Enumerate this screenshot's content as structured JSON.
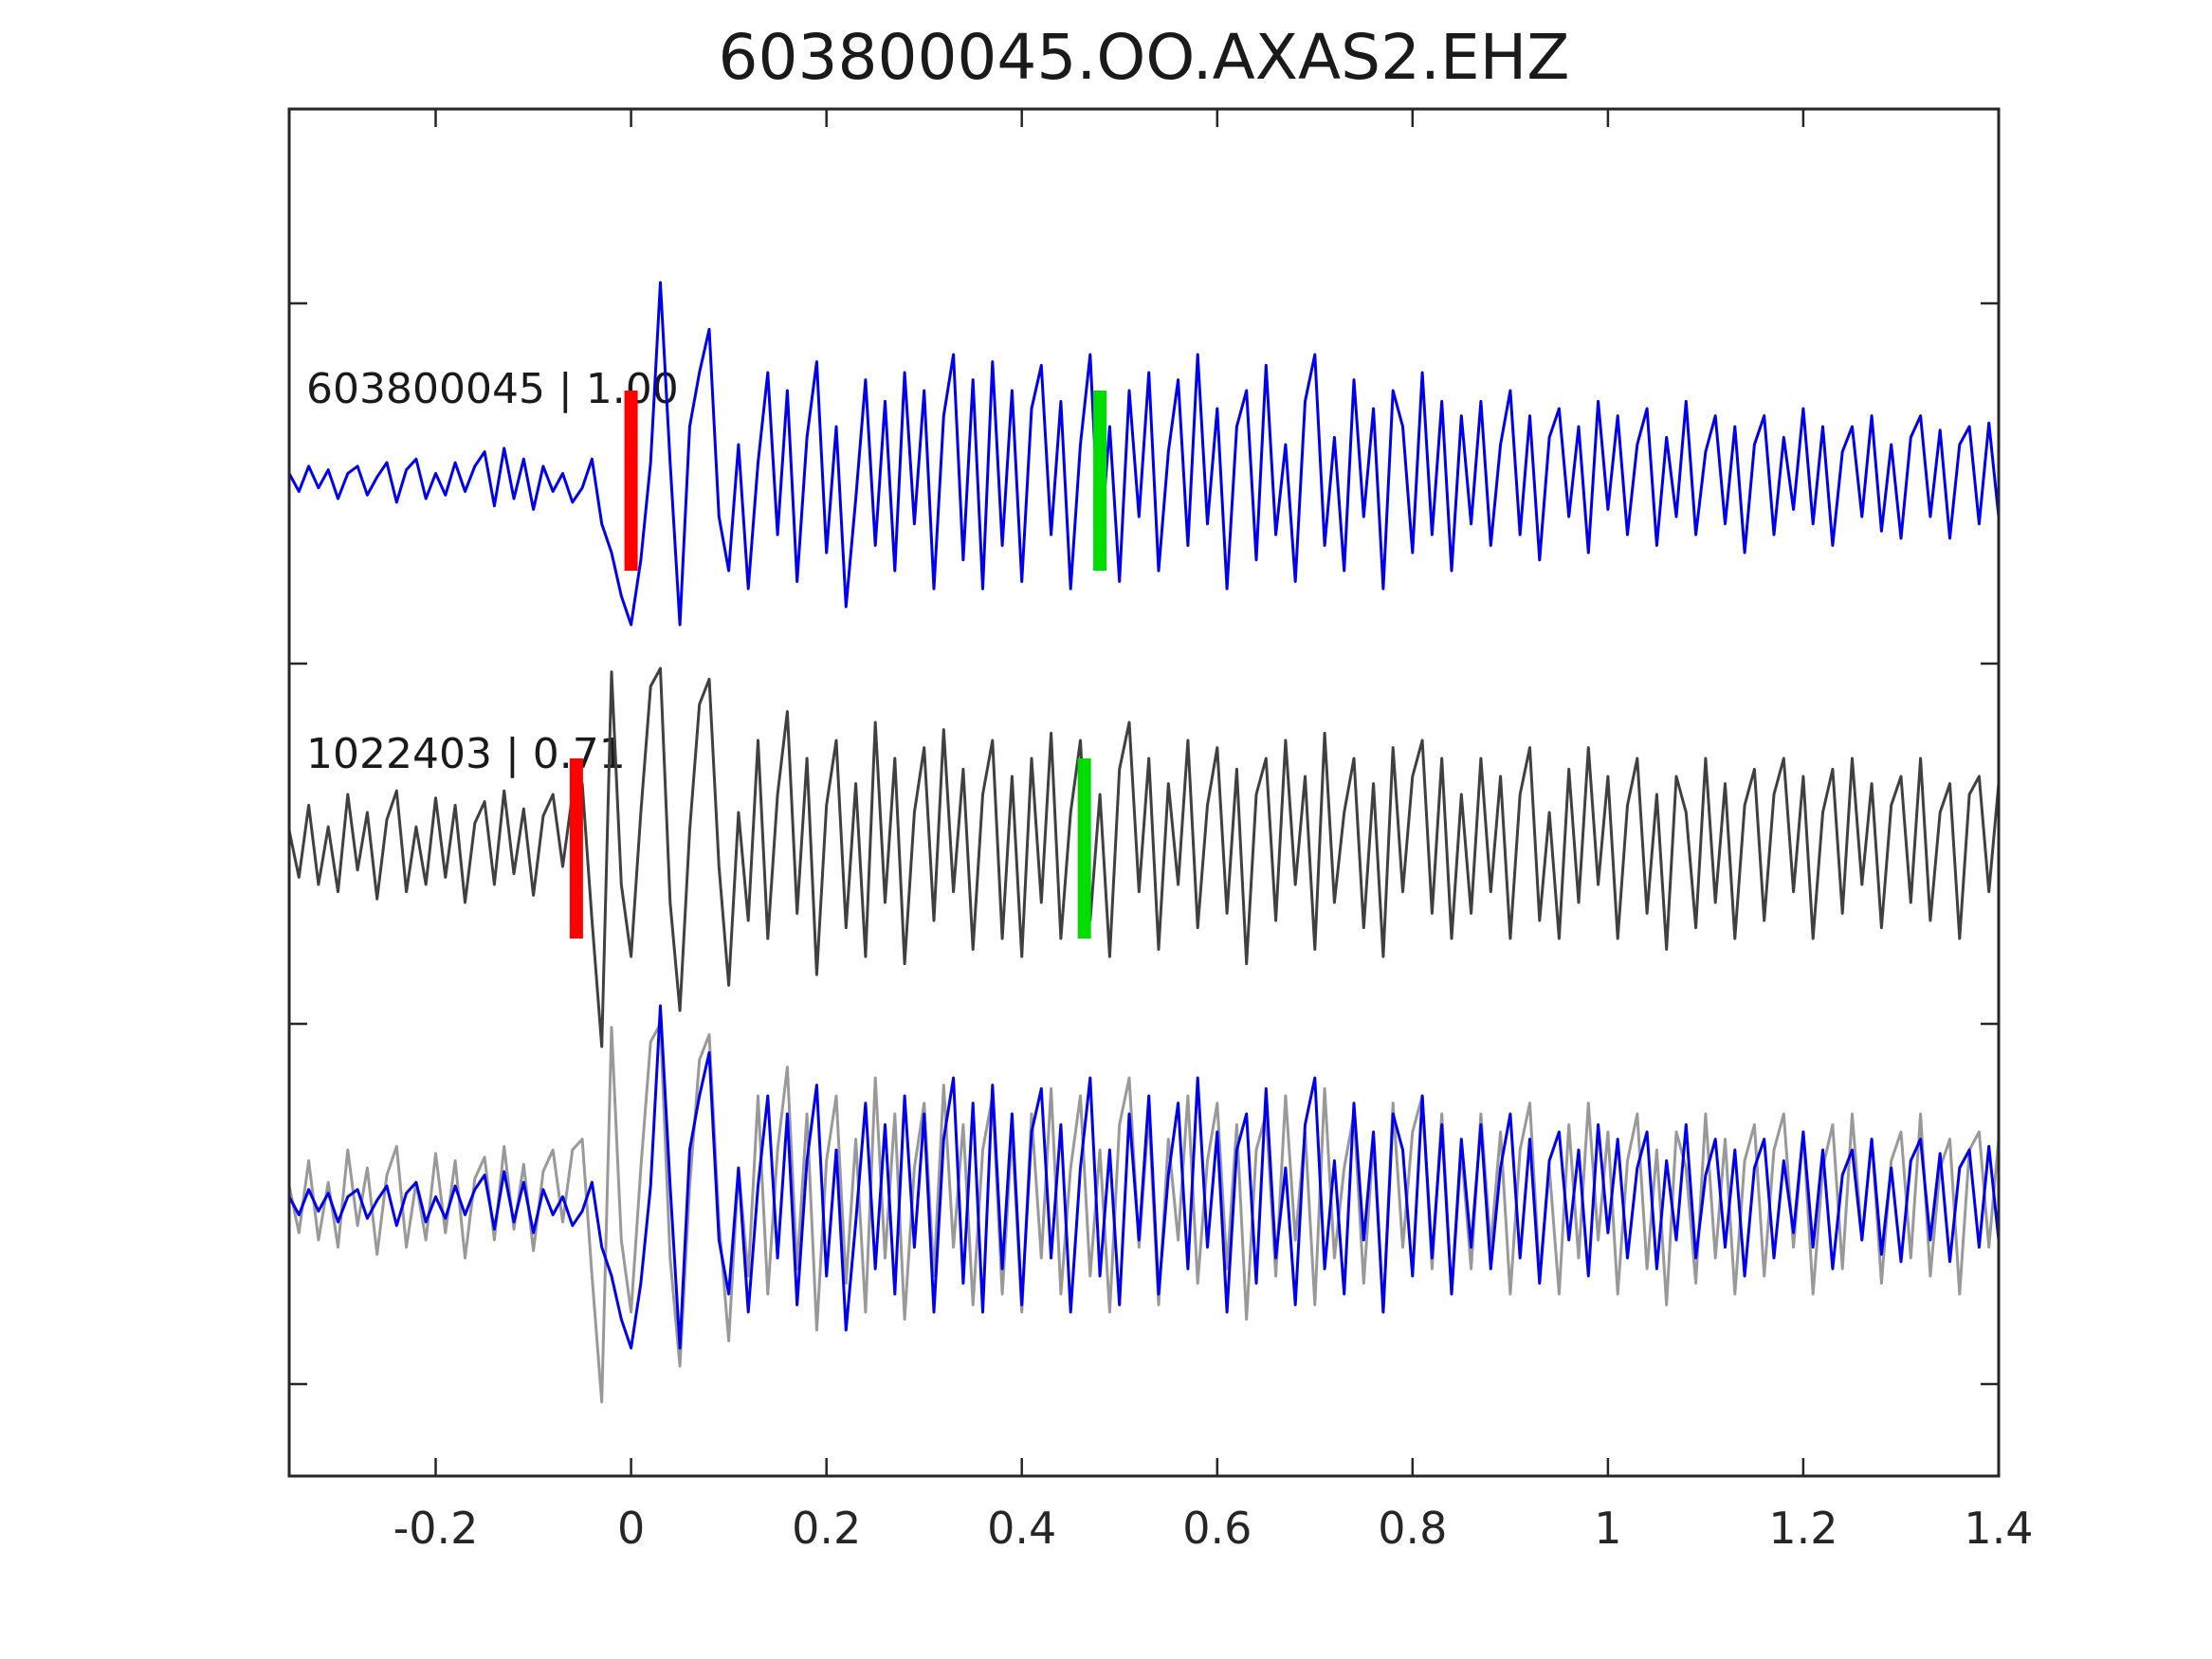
{
  "chart_data": {
    "type": "line",
    "title": "603800045.OO.AXAS2.EHZ",
    "xlabel": "",
    "ylabel": "",
    "xlim": [
      -0.35,
      1.4
    ],
    "grid": false,
    "x_ticks": [
      {
        "value": -0.2,
        "label": "-0.2"
      },
      {
        "value": 0,
        "label": "0"
      },
      {
        "value": 0.2,
        "label": "0.2"
      },
      {
        "value": 0.4,
        "label": "0.4"
      },
      {
        "value": 0.6,
        "label": "0.6"
      },
      {
        "value": 0.8,
        "label": "0.8"
      },
      {
        "value": 1,
        "label": "1"
      },
      {
        "value": 1.2,
        "label": "1.2"
      },
      {
        "value": 1.4,
        "label": "1.4"
      }
    ],
    "y_tick_rows": [
      2.5,
      1.5,
      0.5,
      -0.5
    ],
    "colors": {
      "template_line": "#0000ee",
      "detection_line": "#404040",
      "overlay_detection_line": "#999999",
      "pick_marker": "#ff0000",
      "window_marker": "#00dd00",
      "spine": "#262626",
      "text": "#1a1a1a"
    },
    "rows": [
      {
        "row": 1,
        "content": "template waveform 603800045 with pick and window markers"
      },
      {
        "row": 2,
        "content": "detection waveform 1022403 with pick and window markers"
      },
      {
        "row": 3,
        "content": "overlay of detection (gray) and template (blue)"
      }
    ],
    "traces": [
      {
        "id": "603800045",
        "label": "603800045 | 1.00",
        "correlation": "1.00",
        "red_pick_time": 0.0,
        "green_marker_time": 0.48,
        "x0": -0.35,
        "dx": 0.01,
        "values": [
          0.02,
          -0.03,
          0.04,
          -0.02,
          0.03,
          -0.05,
          0.02,
          0.04,
          -0.04,
          0.01,
          0.05,
          -0.06,
          0.03,
          0.06,
          -0.05,
          0.02,
          -0.04,
          0.05,
          -0.03,
          0.04,
          0.08,
          -0.07,
          0.09,
          -0.05,
          0.06,
          -0.08,
          0.04,
          -0.03,
          0.02,
          -0.06,
          -0.02,
          0.06,
          -0.12,
          -0.2,
          -0.32,
          -0.4,
          -0.22,
          0.05,
          0.55,
          0.05,
          -0.4,
          0.15,
          0.3,
          0.42,
          -0.1,
          -0.25,
          0.1,
          -0.3,
          0.05,
          0.3,
          -0.15,
          0.25,
          -0.28,
          0.12,
          0.33,
          -0.2,
          0.15,
          -0.35,
          -0.05,
          0.28,
          -0.18,
          0.22,
          -0.25,
          0.3,
          -0.12,
          0.25,
          -0.3,
          0.18,
          0.35,
          -0.22,
          0.28,
          -0.3,
          0.33,
          -0.18,
          0.25,
          -0.28,
          0.2,
          0.32,
          -0.15,
          0.22,
          -0.3,
          0.1,
          0.35,
          -0.2,
          0.15,
          -0.28,
          0.25,
          -0.1,
          0.3,
          -0.25,
          0.08,
          0.28,
          -0.18,
          0.35,
          -0.12,
          0.2,
          -0.3,
          0.15,
          0.25,
          -0.22,
          0.32,
          -0.15,
          0.1,
          -0.28,
          0.22,
          0.35,
          -0.18,
          0.12,
          -0.25,
          0.28,
          -0.1,
          0.2,
          -0.3,
          0.25,
          0.15,
          -0.2,
          0.3,
          -0.15,
          0.22,
          -0.25,
          0.18,
          -0.12,
          0.22,
          -0.18,
          0.1,
          0.25,
          -0.15,
          0.18,
          -0.22,
          0.12,
          0.2,
          -0.1,
          0.15,
          -0.2,
          0.22,
          -0.08,
          0.18,
          -0.15,
          0.1,
          0.2,
          -0.18,
          0.12,
          -0.1,
          0.22,
          -0.15,
          0.08,
          0.18,
          -0.12,
          0.15,
          -0.2,
          0.1,
          0.18,
          -0.15,
          0.12,
          -0.08,
          0.2,
          -0.12,
          0.15,
          -0.18,
          0.08,
          0.15,
          -0.1,
          0.18,
          -0.14,
          0.1,
          -0.16,
          0.12,
          0.18,
          -0.1,
          0.14,
          -0.16,
          0.1,
          0.15,
          -0.12,
          0.16,
          -0.1
        ]
      },
      {
        "id": "1022403",
        "label": "1022403 | 0.71",
        "correlation": "0.71",
        "red_pick_time": -0.056,
        "green_marker_time": 0.464,
        "x0": -0.35,
        "dx": 0.01,
        "values": [
          0.05,
          -0.08,
          0.12,
          -0.1,
          0.06,
          -0.12,
          0.15,
          -0.06,
          0.1,
          -0.14,
          0.08,
          0.16,
          -0.12,
          0.06,
          -0.1,
          0.14,
          -0.08,
          0.12,
          -0.15,
          0.07,
          0.13,
          -0.1,
          0.16,
          -0.07,
          0.11,
          -0.13,
          0.09,
          0.15,
          -0.05,
          0.15,
          0.18,
          -0.2,
          -0.55,
          0.49,
          -0.1,
          -0.3,
          0.1,
          0.45,
          0.5,
          -0.15,
          -0.45,
          0.05,
          0.4,
          0.47,
          -0.05,
          -0.38,
          0.1,
          -0.2,
          0.3,
          -0.25,
          0.15,
          0.38,
          -0.18,
          0.25,
          -0.35,
          0.12,
          0.3,
          -0.22,
          0.18,
          -0.3,
          0.35,
          -0.15,
          0.25,
          -0.32,
          0.1,
          0.28,
          -0.2,
          0.33,
          -0.12,
          0.22,
          -0.28,
          0.15,
          0.3,
          -0.25,
          0.2,
          -0.3,
          0.25,
          -0.15,
          0.32,
          -0.25,
          0.1,
          0.3,
          -0.2,
          0.15,
          -0.3,
          0.22,
          0.35,
          -0.12,
          0.25,
          -0.28,
          0.18,
          -0.1,
          0.3,
          -0.22,
          0.12,
          0.28,
          -0.18,
          0.22,
          -0.32,
          0.15,
          0.25,
          -0.2,
          0.3,
          -0.1,
          0.2,
          -0.28,
          0.32,
          -0.15,
          0.1,
          0.25,
          -0.22,
          0.18,
          -0.3,
          0.28,
          -0.12,
          0.2,
          0.3,
          -0.18,
          0.25,
          -0.25,
          0.15,
          -0.18,
          0.25,
          -0.12,
          0.2,
          -0.25,
          0.15,
          0.28,
          -0.2,
          0.1,
          -0.25,
          0.22,
          -0.15,
          0.28,
          -0.1,
          0.2,
          -0.25,
          0.12,
          0.25,
          -0.18,
          0.15,
          -0.28,
          0.2,
          0.1,
          -0.22,
          0.25,
          -0.15,
          0.18,
          -0.25,
          0.12,
          0.22,
          -0.2,
          0.15,
          0.25,
          -0.12,
          0.2,
          -0.25,
          0.1,
          0.22,
          -0.18,
          0.25,
          -0.1,
          0.18,
          -0.22,
          0.12,
          0.2,
          -0.15,
          0.25,
          -0.2,
          0.1,
          0.18,
          -0.25,
          0.15,
          0.2,
          -0.12,
          0.18
        ]
      }
    ]
  }
}
